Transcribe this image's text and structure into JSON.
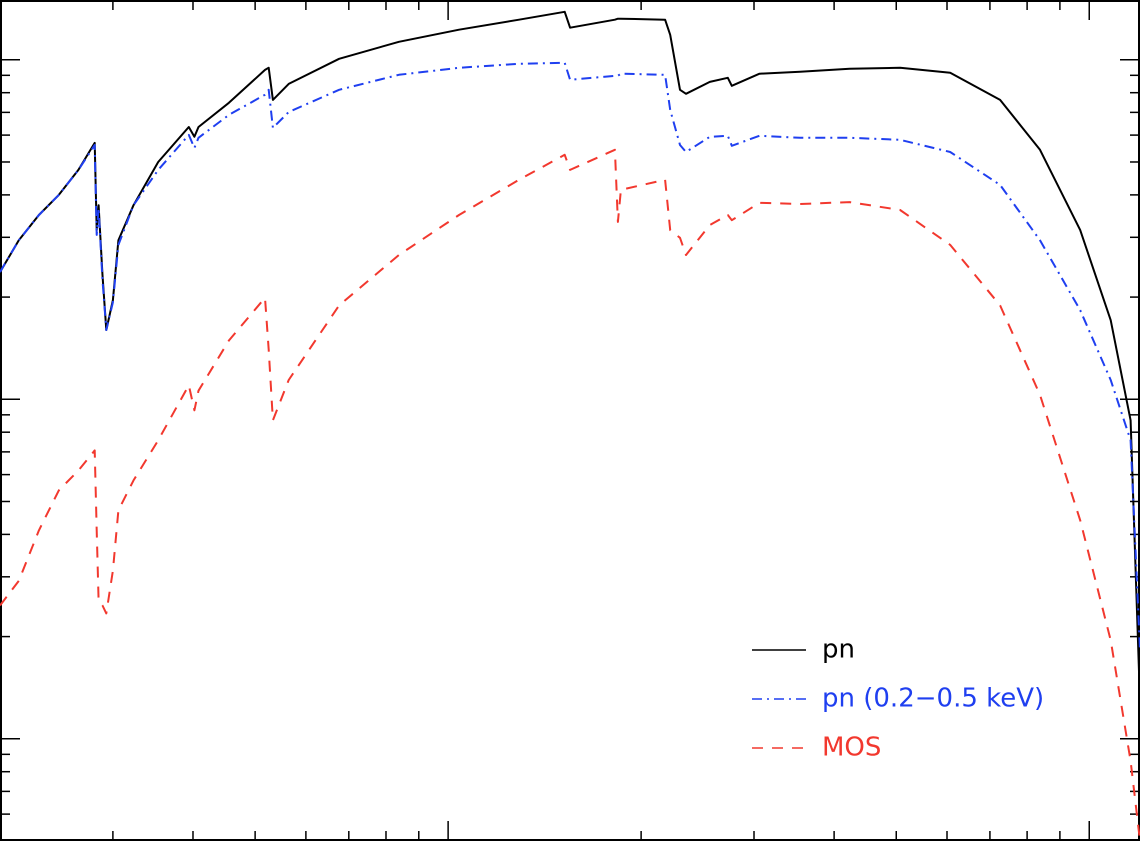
{
  "chart_data": {
    "type": "line",
    "xscale": "log",
    "yscale": "log",
    "xlim": [
      0.2,
      12
    ],
    "ylim": [
      5,
      1500
    ],
    "xticks": [
      0.3,
      0.4,
      0.5,
      0.6,
      0.7,
      0.8,
      0.9,
      1,
      2,
      3,
      4,
      5,
      6,
      7,
      8,
      9,
      10
    ],
    "yticks": [
      6,
      7,
      8,
      9,
      10,
      20,
      30,
      40,
      50,
      60,
      70,
      80,
      90,
      100,
      200,
      300,
      400,
      500,
      600,
      700,
      800,
      900,
      1000
    ],
    "legend": "lower right",
    "x": [
      0.2,
      0.214,
      0.23,
      0.247,
      0.265,
      0.281,
      0.283,
      0.285,
      0.289,
      0.293,
      0.3,
      0.306,
      0.323,
      0.353,
      0.394,
      0.402,
      0.408,
      0.455,
      0.518,
      0.525,
      0.533,
      0.564,
      0.676,
      0.838,
      1.04,
      1.29,
      1.52,
      1.55,
      1.82,
      1.84,
      1.86,
      2.18,
      2.22,
      2.3,
      2.35,
      2.56,
      2.73,
      2.77,
      3.06,
      3.54,
      4.23,
      5.07,
      6.07,
      7.26,
      8.38,
      9.68,
      10.8,
      11.6,
      12
    ],
    "series": [
      {
        "name": "pn",
        "color": "#000000",
        "linestyle": "solid",
        "values": [
          237,
          294,
          349,
          400,
          474,
          569,
          315,
          373,
          232,
          160,
          196,
          294,
          373,
          500,
          634,
          593,
          634,
          747,
          934,
          947,
          762,
          849,
          1007,
          1130,
          1226,
          1312,
          1385,
          1243,
          1312,
          1321,
          1321,
          1312,
          1185,
          816,
          794,
          861,
          885,
          838,
          910,
          922,
          941,
          947,
          916,
          762,
          543,
          315,
          171,
          86.7,
          12.9
        ]
      },
      {
        "name": "pn (0.2−0.5 keV)",
        "color": "#1f3ff0",
        "linestyle": "dashdot",
        "values": [
          237,
          294,
          349,
          400,
          474,
          561,
          305,
          366,
          224,
          160,
          193,
          285,
          373,
          474,
          601,
          550,
          589,
          688,
          789,
          816,
          630,
          702,
          816,
          903,
          947,
          973,
          980,
          873,
          897,
          897,
          910,
          903,
          712,
          561,
          535,
          593,
          597,
          558,
          597,
          589,
          589,
          581,
          535,
          428,
          294,
          183,
          114,
          75.7,
          18.2
        ]
      },
      {
        "name": "MOS",
        "color": "#f2382e",
        "linestyle": "dashed",
        "values": [
          24.7,
          29.2,
          41.1,
          53.9,
          61.7,
          70.7,
          41.1,
          25.5,
          24.7,
          23.4,
          31.3,
          47.1,
          57.7,
          75.7,
          110,
          92.8,
          106,
          149,
          199,
          140,
          86.7,
          114,
          189,
          266,
          349,
          443,
          525,
          474,
          543,
          333,
          414,
          443,
          315,
          299,
          266,
          326,
          349,
          337,
          379,
          376,
          381,
          361,
          285,
          189,
          103,
          44,
          19.5,
          8.6,
          5
        ]
      }
    ]
  }
}
